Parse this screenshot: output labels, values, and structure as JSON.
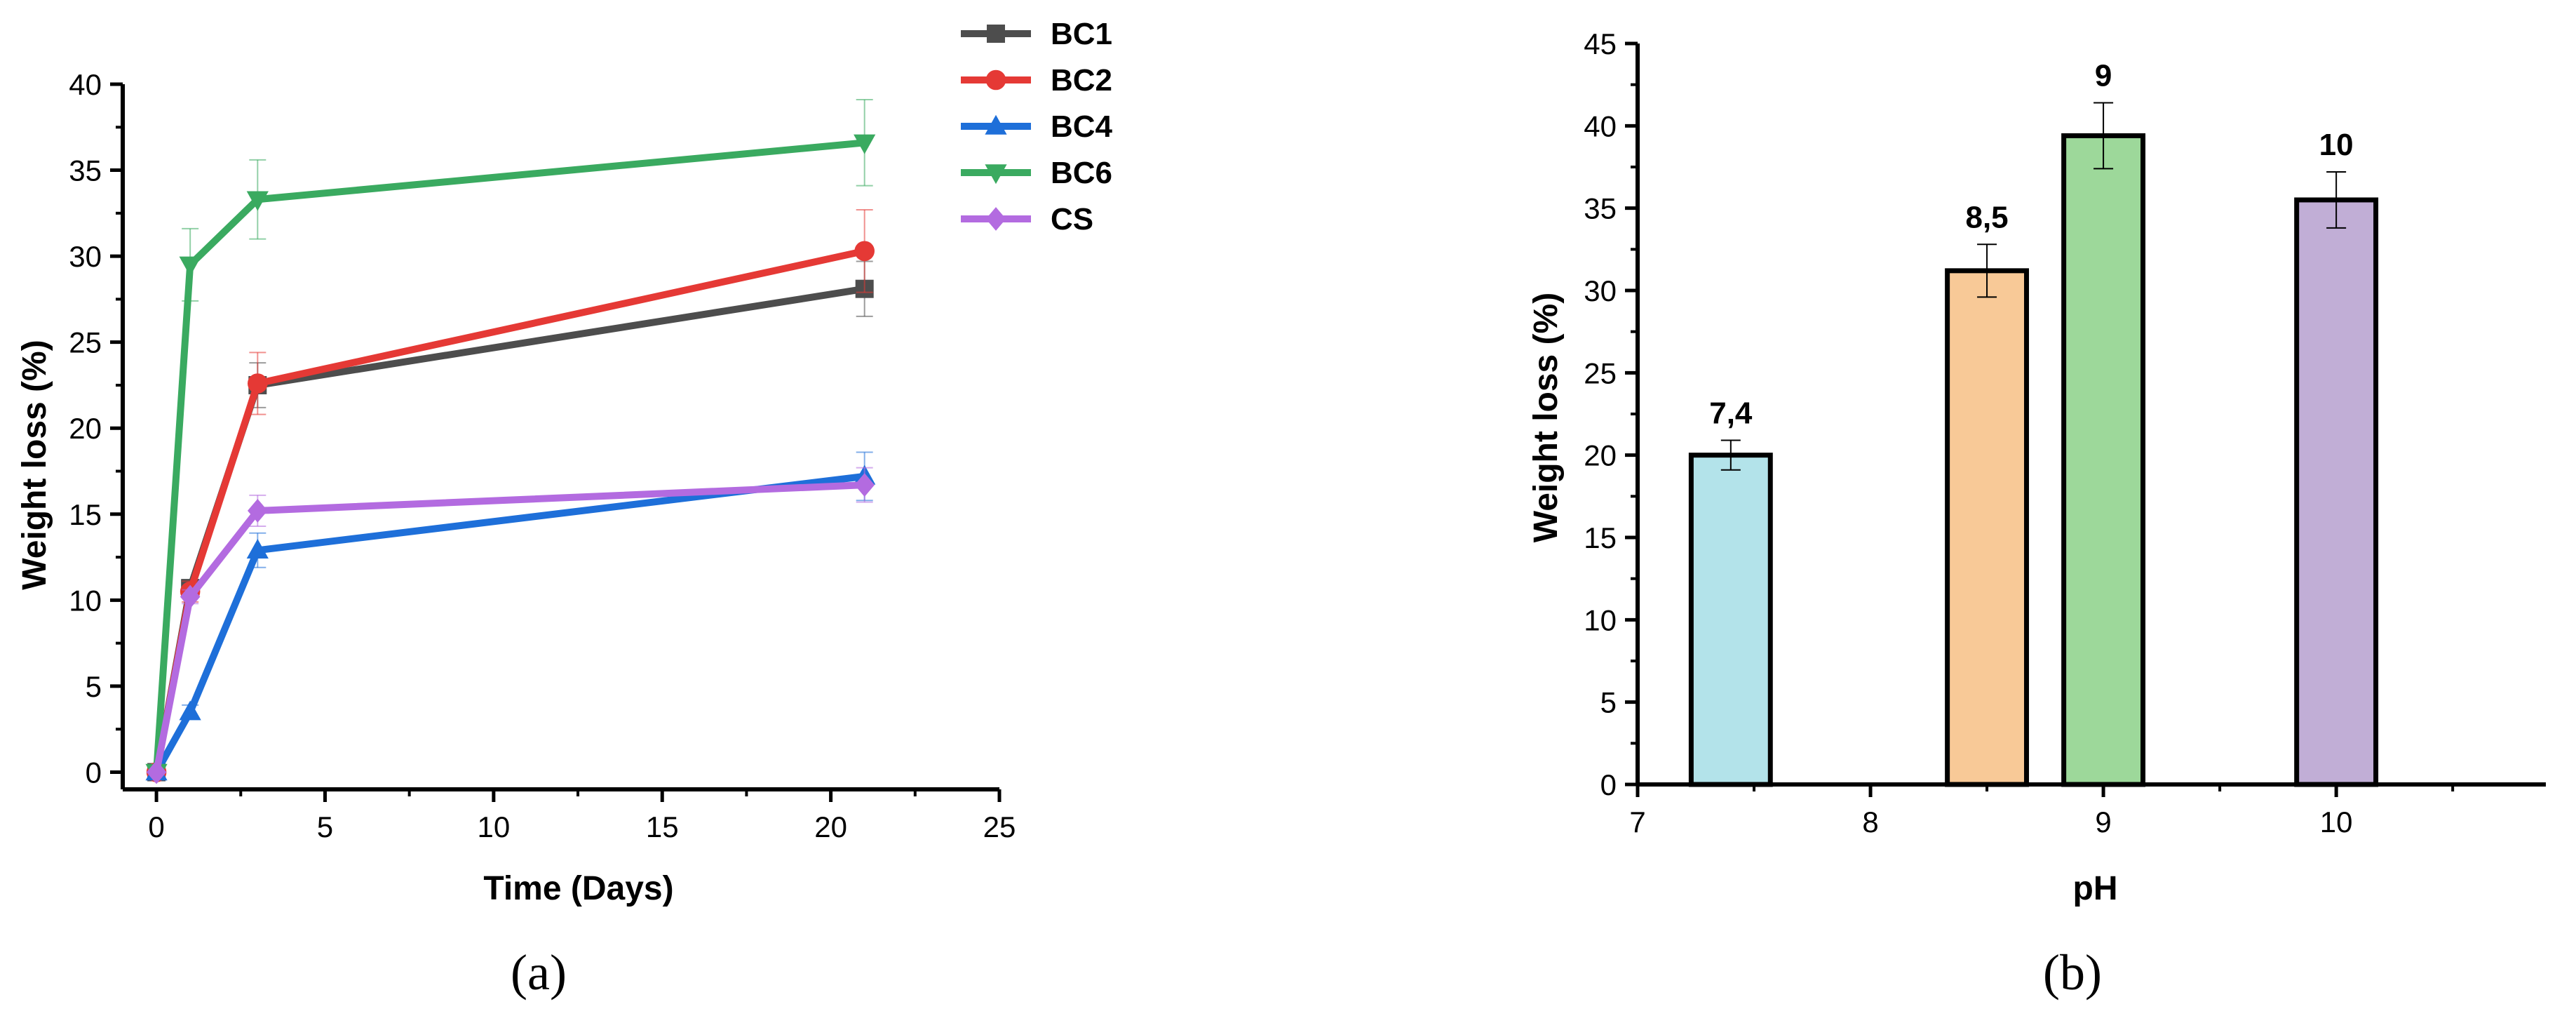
{
  "chart_data": [
    {
      "type": "line",
      "panel_label": "(a)",
      "xlabel": "Time (Days)",
      "ylabel": "Weight loss (%)",
      "xlim": [
        -1,
        25
      ],
      "ylim": [
        -1,
        40
      ],
      "xticks": [
        0,
        5,
        10,
        15,
        20,
        25
      ],
      "yticks": [
        0,
        5,
        10,
        15,
        20,
        25,
        30,
        35,
        40
      ],
      "x": [
        0,
        1,
        3,
        21
      ],
      "series": [
        {
          "name": "BC1",
          "color": "#4d4d4d",
          "marker": "square",
          "values": [
            0,
            10.7,
            22.5,
            28.1
          ],
          "errors": [
            0,
            0.5,
            1.3,
            1.6
          ]
        },
        {
          "name": "BC2",
          "color": "#e53935",
          "marker": "circle",
          "values": [
            0,
            10.5,
            22.6,
            30.3
          ],
          "errors": [
            0,
            0.6,
            1.8,
            2.4
          ]
        },
        {
          "name": "BC4",
          "color": "#1e6fd9",
          "marker": "triangle-up",
          "values": [
            0,
            3.5,
            12.9,
            17.2
          ],
          "errors": [
            0,
            0.4,
            1.0,
            1.4
          ]
        },
        {
          "name": "BC6",
          "color": "#3aaa60",
          "marker": "triangle-down",
          "values": [
            0,
            29.5,
            33.3,
            36.6
          ],
          "errors": [
            0,
            2.1,
            2.3,
            2.5
          ]
        },
        {
          "name": "CS",
          "color": "#b36be0",
          "marker": "diamond",
          "values": [
            0,
            10.2,
            15.2,
            16.7
          ],
          "errors": [
            0,
            0.4,
            0.9,
            1.0
          ]
        }
      ]
    },
    {
      "type": "bar",
      "panel_label": "(b)",
      "xlabel": "pH",
      "ylabel": "Weight loss (%)",
      "xlim": [
        7,
        10.9
      ],
      "ylim": [
        0,
        45
      ],
      "xticks": [
        7,
        8,
        9,
        10
      ],
      "yticks": [
        0,
        5,
        10,
        15,
        20,
        25,
        30,
        35,
        40,
        45
      ],
      "bars": [
        {
          "x": 7.4,
          "label": "7,4",
          "value": 20.0,
          "error": 0.9,
          "color": "#b3e3ea"
        },
        {
          "x": 8.5,
          "label": "8,5",
          "value": 31.2,
          "error": 1.6,
          "color": "#f8c997"
        },
        {
          "x": 9.0,
          "label": "9",
          "value": 39.4,
          "error": 2.0,
          "color": "#9dd89a"
        },
        {
          "x": 10.0,
          "label": "10",
          "value": 35.5,
          "error": 1.7,
          "color": "#c1aed6"
        }
      ]
    }
  ]
}
